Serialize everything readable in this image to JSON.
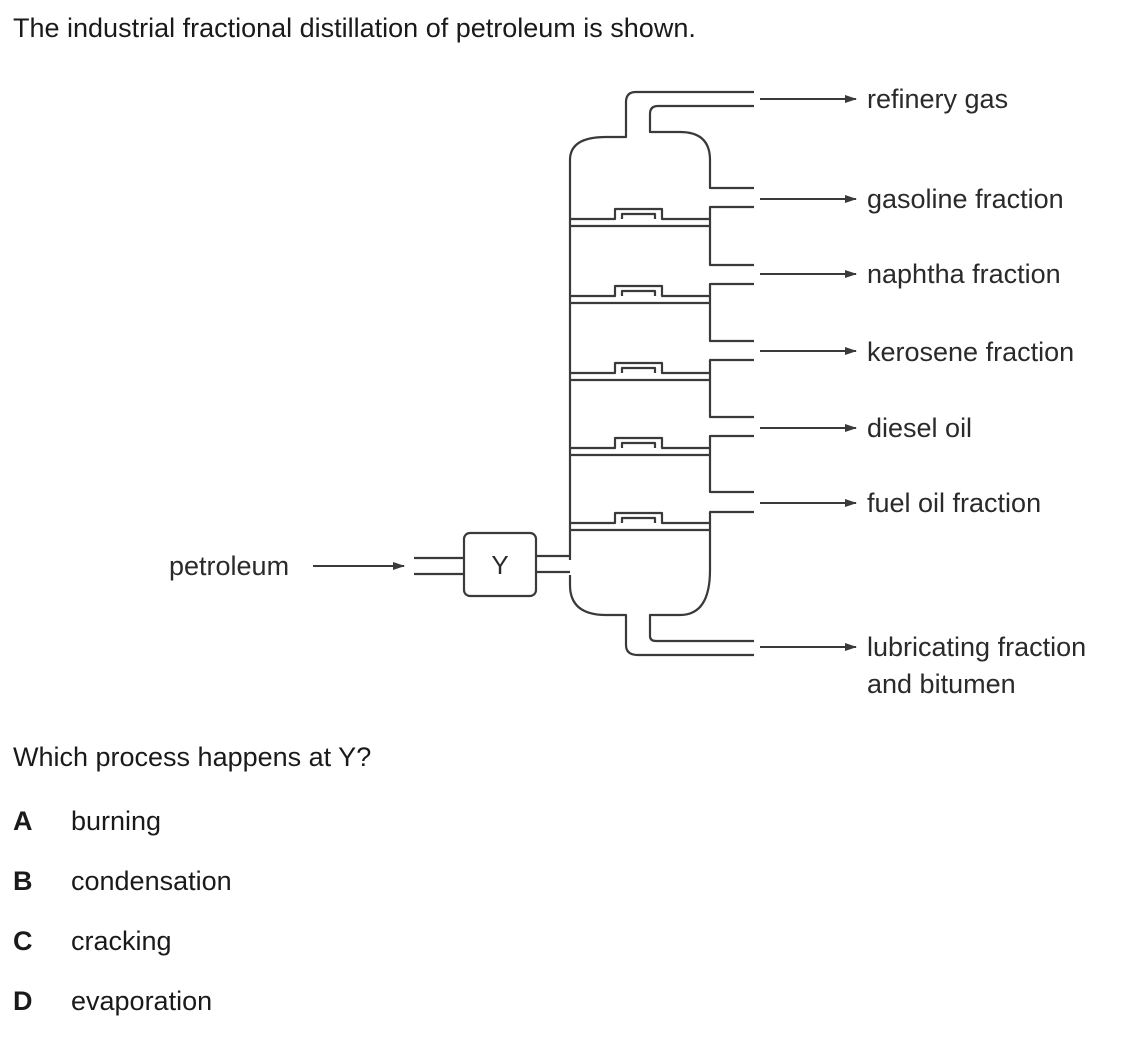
{
  "intro_text": "The industrial fractional distillation of petroleum is shown.",
  "diagram": {
    "input_label": "petroleum",
    "box_label": "Y",
    "fractions": [
      {
        "label_lines": [
          "refinery gas"
        ]
      },
      {
        "label_lines": [
          "gasoline fraction"
        ]
      },
      {
        "label_lines": [
          "naphtha fraction"
        ]
      },
      {
        "label_lines": [
          "kerosene fraction"
        ]
      },
      {
        "label_lines": [
          "diesel oil"
        ]
      },
      {
        "label_lines": [
          "fuel oil fraction"
        ]
      },
      {
        "label_lines": [
          "lubricating fraction",
          "and bitumen"
        ]
      }
    ],
    "colors": {
      "line": "#3a3a3a",
      "text": "#2a2a2a"
    }
  },
  "question_text": "Which process happens at Y?",
  "options": [
    {
      "letter": "A",
      "text": "burning"
    },
    {
      "letter": "B",
      "text": "condensation"
    },
    {
      "letter": "C",
      "text": "cracking"
    },
    {
      "letter": "D",
      "text": "evaporation"
    }
  ]
}
